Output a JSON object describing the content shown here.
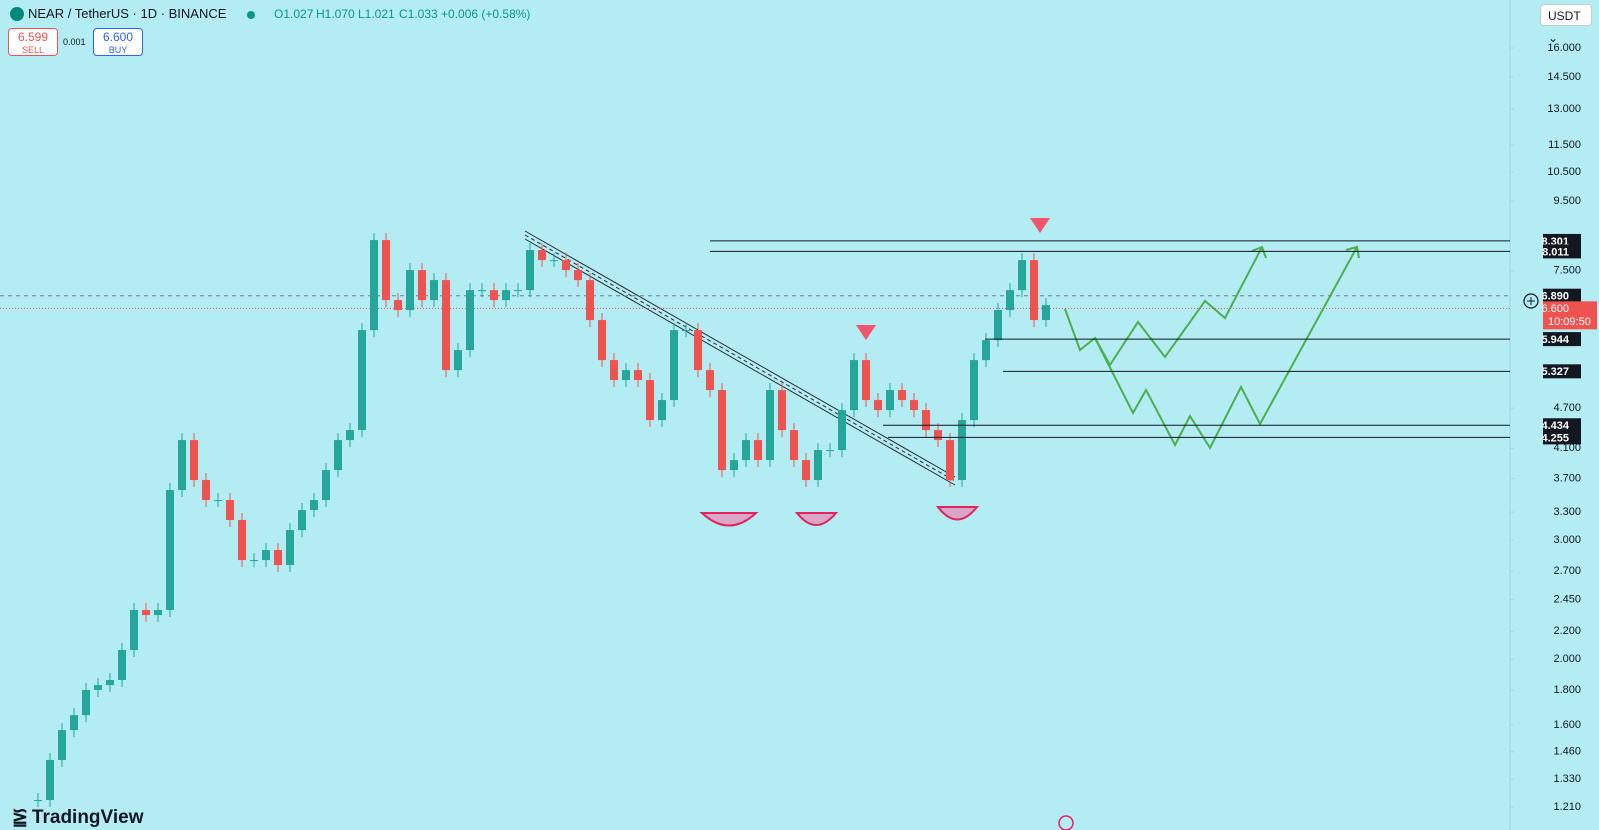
{
  "chart_data": {
    "type": "candlestick",
    "title": "NEAR / TetherUS · 1D · BINANCE",
    "ohlc_legend": [
      "O1.027",
      "H1.070",
      "L1.021",
      "C1.033 +0.006 (+0.58%)"
    ],
    "sell": {
      "price": "6.599",
      "label": "SELL"
    },
    "spread": "0.001",
    "buy": {
      "price": "6.600",
      "label": "BUY"
    },
    "currency": "USDT",
    "brand": "TradingView",
    "log_scale": true,
    "up_color": "#26a69a",
    "down_color": "#ef5350",
    "values": [
      1.239,
      1.42,
      1.572,
      1.654,
      1.802,
      1.832,
      1.864,
      2.064,
      2.365,
      2.325,
      2.365,
      3.557,
      4.216,
      3.68,
      3.438,
      3.438,
      3.212,
      2.803,
      2.803,
      2.9,
      2.756,
      3.104,
      3.323,
      3.438,
      3.807,
      4.216,
      4.362,
      6.129,
      8.325,
      6.788,
      6.561,
      7.517,
      6.788,
      7.265,
      5.349,
      5.726,
      7.022,
      7.022,
      6.788,
      7.022,
      7.022,
      8.047,
      7.777,
      7.777,
      7.517,
      7.265,
      6.342,
      5.534,
      5.171,
      5.349,
      5.171,
      4.513,
      4.831,
      6.129,
      6.129,
      5.349,
      4.998,
      3.807,
      3.939,
      4.216,
      3.939,
      4.998,
      4.362,
      3.939,
      3.68,
      4.075,
      4.075,
      4.669,
      5.534,
      4.831,
      4.669,
      4.998,
      4.831,
      4.669,
      4.362,
      4.216,
      3.68,
      4.513,
      5.534,
      5.924,
      6.561,
      7.022,
      7.777,
      6.342,
      6.673
    ],
    "ylim": [
      1.119,
      18.84
    ],
    "yticks": [
      {
        "value": 16,
        "label": "16.000"
      },
      {
        "value": 14.5,
        "label": "14.500"
      },
      {
        "value": 13,
        "label": "13.000"
      },
      {
        "value": 11.5,
        "label": "11.500"
      },
      {
        "value": 10.5,
        "label": "10.500"
      },
      {
        "value": 9.5,
        "label": "9.500"
      },
      {
        "value": 7.5,
        "label": "7.500"
      },
      {
        "value": 4.7,
        "label": "4.700"
      },
      {
        "value": 4.1,
        "label": "4.100"
      },
      {
        "value": 3.7,
        "label": "3.700"
      },
      {
        "value": 3.3,
        "label": "3.300"
      },
      {
        "value": 3,
        "label": "3.000"
      },
      {
        "value": 2.7,
        "label": "2.700"
      },
      {
        "value": 2.45,
        "label": "2.450"
      },
      {
        "value": 2.2,
        "label": "2.200"
      },
      {
        "value": 2,
        "label": "2.000"
      },
      {
        "value": 1.8,
        "label": "1.800"
      },
      {
        "value": 1.6,
        "label": "1.600"
      },
      {
        "value": 1.46,
        "label": "1.460"
      },
      {
        "value": 1.33,
        "label": "1.330"
      },
      {
        "value": 1.21,
        "label": "1.210"
      }
    ],
    "levels": [
      8.301,
      8.011,
      5.944,
      5.327,
      4.434,
      4.255
    ],
    "crosshair_price": {
      "value": 6.89,
      "label": "6.890"
    },
    "last_price": {
      "value": 6.6,
      "label": "6.600"
    },
    "countdown": "10:09:50"
  }
}
